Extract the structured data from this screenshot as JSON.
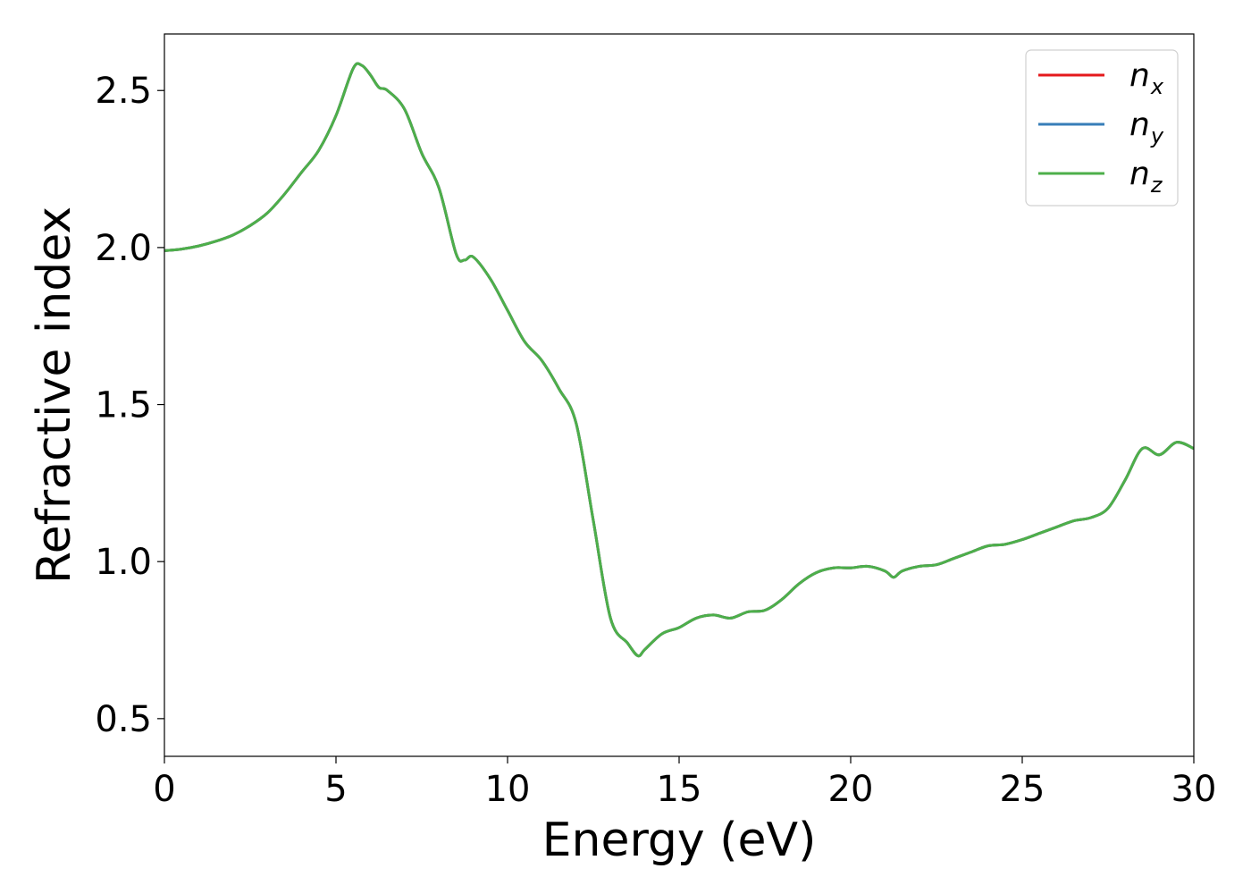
{
  "chart_data": {
    "type": "line",
    "xlabel": "Energy (eV)",
    "ylabel": "Refractive index",
    "xlim": [
      0,
      30
    ],
    "ylim": [
      0.38,
      2.68
    ],
    "xticks": [
      0,
      5,
      10,
      15,
      20,
      25,
      30
    ],
    "xtick_labels": [
      "0",
      "5",
      "10",
      "15",
      "20",
      "25",
      "30"
    ],
    "yticks": [
      0.5,
      1.0,
      1.5,
      2.0,
      2.5
    ],
    "ytick_labels": [
      "0.5",
      "1.0",
      "1.5",
      "2.0",
      "2.5"
    ],
    "grid": false,
    "legend_position": "top-right",
    "series": [
      {
        "name": "n_x",
        "symbol": "n",
        "subscript": "x",
        "color": "#e41a1c"
      },
      {
        "name": "n_y",
        "symbol": "n",
        "subscript": "y",
        "color": "#377eb8"
      },
      {
        "name": "n_z",
        "symbol": "n",
        "subscript": "z",
        "color": "#4daf4a"
      }
    ],
    "x": [
      0,
      0.5,
      1,
      1.5,
      2,
      2.5,
      3,
      3.5,
      4,
      4.5,
      5,
      5.5,
      5.75,
      6,
      6.25,
      6.5,
      7,
      7.5,
      8,
      8.5,
      8.75,
      9,
      9.5,
      10,
      10.5,
      11,
      11.5,
      12,
      12.5,
      13,
      13.5,
      13.8,
      14,
      14.5,
      15,
      15.5,
      16,
      16.5,
      17,
      17.5,
      18,
      18.5,
      19,
      19.5,
      20,
      20.5,
      21,
      21.25,
      21.5,
      22,
      22.5,
      23,
      23.5,
      24,
      24.5,
      25,
      25.5,
      26,
      26.5,
      27,
      27.5,
      28,
      28.5,
      29,
      29.5,
      30
    ],
    "y": [
      1.99,
      1.995,
      2.005,
      2.02,
      2.04,
      2.07,
      2.11,
      2.17,
      2.24,
      2.31,
      2.42,
      2.57,
      2.58,
      2.55,
      2.51,
      2.5,
      2.44,
      2.3,
      2.19,
      1.98,
      1.96,
      1.97,
      1.9,
      1.8,
      1.7,
      1.64,
      1.55,
      1.44,
      1.13,
      0.82,
      0.74,
      0.7,
      0.72,
      0.77,
      0.79,
      0.82,
      0.83,
      0.82,
      0.84,
      0.845,
      0.88,
      0.93,
      0.965,
      0.98,
      0.98,
      0.985,
      0.97,
      0.95,
      0.97,
      0.985,
      0.99,
      1.01,
      1.03,
      1.05,
      1.055,
      1.07,
      1.09,
      1.11,
      1.13,
      1.14,
      1.17,
      1.26,
      1.36,
      1.34,
      1.38,
      1.36
    ]
  }
}
